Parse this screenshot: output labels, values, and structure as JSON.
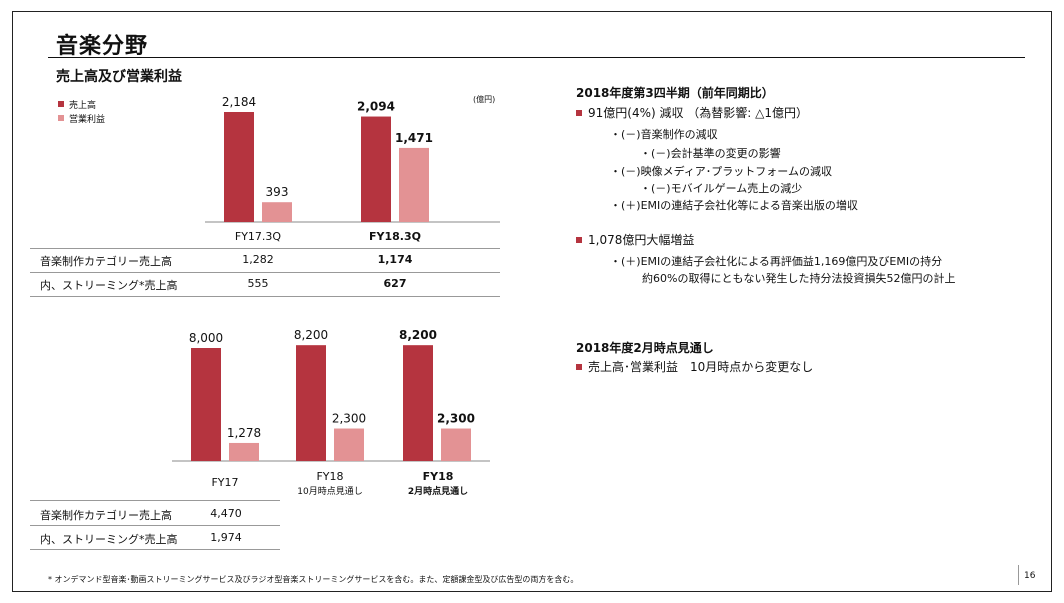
{
  "page_title": "音楽分野",
  "section_title": "売上高及び営業利益",
  "unit": "(億円)",
  "legend": [
    {
      "label": "売上高",
      "color": "#b5343f"
    },
    {
      "label": "営業利益",
      "color": "#e39294"
    }
  ],
  "colors": {
    "sales": "#b5343f",
    "profit": "#e39294",
    "bullet": "#b5343f"
  },
  "chart_data": [
    {
      "type": "bar",
      "categories": [
        "FY17.3Q",
        "FY18.3Q"
      ],
      "series": [
        {
          "name": "売上高",
          "values": [
            2184,
            2094
          ]
        },
        {
          "name": "営業利益",
          "values": [
            393,
            1471
          ]
        }
      ],
      "value_labels": [
        [
          "2,184",
          "393"
        ],
        [
          "2,094",
          "1,471"
        ]
      ],
      "bold_categories": [
        false,
        true
      ]
    },
    {
      "type": "bar",
      "categories": [
        "FY17",
        "FY18",
        "FY18"
      ],
      "category_sublabels": [
        "",
        "10月時点見通し",
        "2月時点見通し"
      ],
      "series": [
        {
          "name": "売上高",
          "values": [
            8000,
            8200,
            8200
          ]
        },
        {
          "name": "営業利益",
          "values": [
            1278,
            2300,
            2300
          ]
        }
      ],
      "value_labels": [
        [
          "8,000",
          "1,278"
        ],
        [
          "8,200",
          "2,300"
        ],
        [
          "8,200",
          "2,300"
        ]
      ],
      "bold_categories": [
        false,
        false,
        true
      ]
    }
  ],
  "table1": {
    "rows": [
      {
        "label": "音楽制作カテゴリー売上高",
        "values": [
          "1,282",
          "1,174"
        ]
      },
      {
        "label": "内、ストリーミング*売上高",
        "values": [
          "555",
          "627"
        ]
      }
    ]
  },
  "table2": {
    "rows": [
      {
        "label": "音楽制作カテゴリー売上高",
        "value": "4,470"
      },
      {
        "label": "内、ストリーミング*売上高",
        "value": "1,974"
      }
    ]
  },
  "right": {
    "heading1": "2018年度第3四半期（前年同期比）",
    "bullet1": "91億円(4%) 減収 （為替影響: △1億円）",
    "sub1": [
      "・(－)音楽制作の減収",
      "・(－)会計基準の変更の影響",
      "・(－)映像メディア･プラットフォームの減収",
      "・(－)モバイルゲーム売上の減少",
      "・(＋)EMIの連結子会社化等による音楽出版の増収"
    ],
    "bullet2": "1,078億円大幅増益",
    "sub2": [
      "・(＋)EMIの連結子会社化による再評価益1,169億円及びEMIの持分",
      "約60%の取得にともない発生した持分法投資損失52億円の計上"
    ],
    "heading2": "2018年度2月時点見通し",
    "bullet3": "売上高･営業利益　10月時点から変更なし"
  },
  "footnote": "* オンデマンド型音楽･動画ストリーミングサービス及びラジオ型音楽ストリーミングサービスを含む。また、定額課金型及び広告型の両方を含む。",
  "page_number": "16"
}
